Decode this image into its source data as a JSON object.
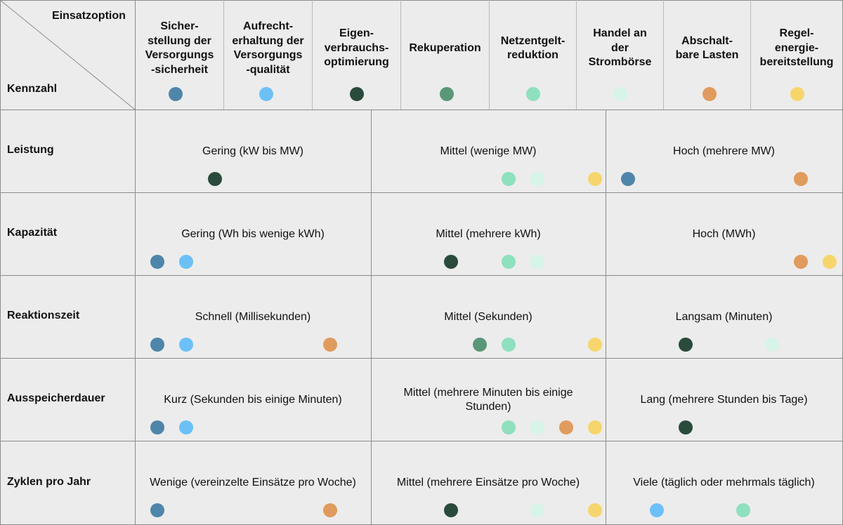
{
  "corner": {
    "top_label": "Einsatzoption",
    "bottom_label": "Kennzahl"
  },
  "options": [
    {
      "label": "Sicher-\nstellung der\nVersorgungs\n-sicherheit",
      "color": "#4e86aa"
    },
    {
      "label": "Aufrecht-\nerhaltung der\nVersorgungs\n-qualität",
      "color": "#6cc0f8"
    },
    {
      "label": "Eigen-\nverbrauchs-\noptimierung",
      "color": "#2a4b3c"
    },
    {
      "label": "Rekuperation",
      "color": "#5a9778"
    },
    {
      "label": "Netzentgelt-\nreduktion",
      "color": "#8ee0be"
    },
    {
      "label": "Handel an\nder\nStrombörse",
      "color": "#d6f4e8"
    },
    {
      "label": "Abschalt-\nbare Lasten",
      "color": "#e19b5c"
    },
    {
      "label": "Regel-\nenergie-\nbereitstellung",
      "color": "#f6d66b"
    }
  ],
  "rows": [
    {
      "label": "Leistung",
      "cells": [
        {
          "text": "Gering (kW bis MW)",
          "options": [
            3
          ]
        },
        {
          "text": "Mittel (wenige MW)",
          "options": [
            5,
            6,
            8
          ]
        },
        {
          "text": "Hoch (mehrere MW)",
          "options": [
            1,
            7
          ]
        }
      ]
    },
    {
      "label": "Kapazität",
      "cells": [
        {
          "text": "Gering (Wh bis wenige kWh)",
          "options": [
            1,
            2
          ]
        },
        {
          "text": "Mittel (mehrere kWh)",
          "options": [
            3,
            5,
            6
          ]
        },
        {
          "text": "Hoch (MWh)",
          "options": [
            7,
            8
          ]
        }
      ]
    },
    {
      "label": "Reaktionszeit",
      "cells": [
        {
          "text": "Schnell (Millisekunden)",
          "options": [
            1,
            2,
            7
          ]
        },
        {
          "text": "Mittel (Sekunden)",
          "options": [
            4,
            5,
            8
          ]
        },
        {
          "text": "Langsam (Minuten)",
          "options": [
            3,
            6
          ]
        }
      ]
    },
    {
      "label": "Ausspeicherdauer",
      "cells": [
        {
          "text": "Kurz (Sekunden bis einige Minuten)",
          "options": [
            1,
            2
          ]
        },
        {
          "text": "Mittel (mehrere Minuten bis einige Stunden)",
          "options": [
            5,
            6,
            7,
            8
          ]
        },
        {
          "text": "Lang (mehrere Stunden bis Tage)",
          "options": [
            3
          ]
        }
      ]
    },
    {
      "label": "Zyklen pro Jahr",
      "cells": [
        {
          "text": "Wenige (vereinzelte Einsätze pro Woche)",
          "options": [
            1,
            7
          ]
        },
        {
          "text": "Mittel (mehrere Einsätze pro Woche)",
          "options": [
            3,
            6,
            8
          ]
        },
        {
          "text": "Viele (täglich oder mehrmals täglich)",
          "options": [
            2,
            5
          ]
        }
      ]
    }
  ]
}
